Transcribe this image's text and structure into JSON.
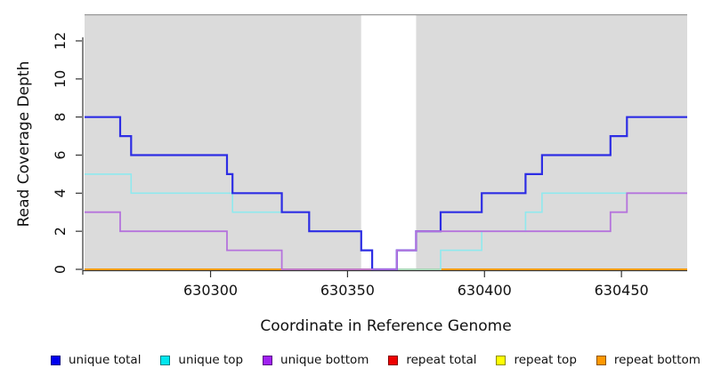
{
  "chart_data": {
    "type": "line",
    "subtype": "step-coverage",
    "title": "",
    "xlabel": "Coordinate in Reference Genome",
    "ylabel": "Read Coverage Depth",
    "xlim": [
      630254,
      630474
    ],
    "ylim": [
      0,
      13.4
    ],
    "x_ticks": [
      630300,
      630350,
      630400,
      630450
    ],
    "y_ticks": [
      0,
      2,
      4,
      6,
      8,
      10,
      12
    ],
    "grid": "off",
    "plot_bg_color": "#dbdbdb",
    "gap_region": {
      "start": 630355,
      "end": 630375,
      "color": "#ffffff"
    },
    "axis_color": "#333333",
    "box_top_color": "#999999",
    "series": [
      {
        "name": "repeat total",
        "color": "#dd1111",
        "width": 1.6,
        "steps": [
          [
            630254,
            0
          ]
        ]
      },
      {
        "name": "repeat top",
        "color": "#f5ee33",
        "width": 1.6,
        "steps": [
          [
            630254,
            0
          ]
        ]
      },
      {
        "name": "repeat bottom",
        "color": "#ff9800",
        "width": 1.8,
        "steps": [
          [
            630254,
            0
          ]
        ]
      },
      {
        "name": "unique top",
        "color": "#8fe9ee",
        "width": 1.6,
        "steps": [
          [
            630254,
            5
          ],
          [
            630271,
            4
          ],
          [
            630308,
            3
          ],
          [
            630336,
            2
          ],
          [
            630355,
            1
          ],
          [
            630359,
            0
          ],
          [
            630384,
            1
          ],
          [
            630399,
            2
          ],
          [
            630415,
            3
          ],
          [
            630421,
            4
          ]
        ]
      },
      {
        "name": "unique total",
        "color": "#2d2de4",
        "width": 2.2,
        "steps": [
          [
            630254,
            8
          ],
          [
            630267,
            7
          ],
          [
            630271,
            6
          ],
          [
            630306,
            5
          ],
          [
            630308,
            4
          ],
          [
            630326,
            3
          ],
          [
            630336,
            2
          ],
          [
            630355,
            1
          ],
          [
            630359,
            0
          ],
          [
            630368,
            1
          ],
          [
            630375,
            2
          ],
          [
            630384,
            3
          ],
          [
            630399,
            4
          ],
          [
            630415,
            5
          ],
          [
            630421,
            6
          ],
          [
            630446,
            7
          ],
          [
            630452,
            8
          ]
        ]
      },
      {
        "name": "unique bottom",
        "color": "#b573dc",
        "width": 1.8,
        "steps": [
          [
            630254,
            3
          ],
          [
            630267,
            2
          ],
          [
            630306,
            1
          ],
          [
            630326,
            0
          ],
          [
            630368,
            1
          ],
          [
            630375,
            2
          ],
          [
            630446,
            3
          ],
          [
            630452,
            4
          ]
        ]
      }
    ],
    "legend": [
      {
        "label": "unique total",
        "swatch": "#0000ee"
      },
      {
        "label": "unique top",
        "swatch": "#00e6ee"
      },
      {
        "label": "unique bottom",
        "swatch": "#a020f0"
      },
      {
        "label": "repeat total",
        "swatch": "#ee0000"
      },
      {
        "label": "repeat top",
        "swatch": "#ffff00"
      },
      {
        "label": "repeat bottom",
        "swatch": "#ff9800"
      }
    ],
    "legend_position": "bottom"
  }
}
